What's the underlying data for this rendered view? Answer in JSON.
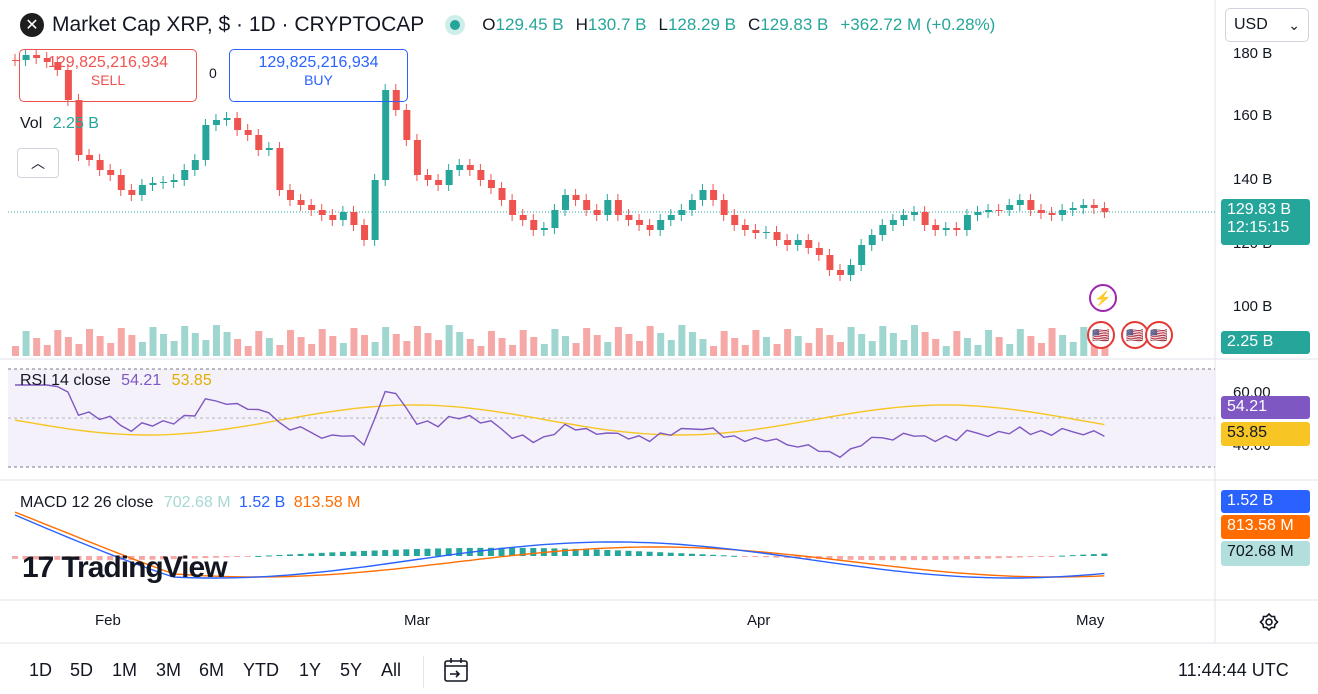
{
  "header": {
    "symbol_icon": "xrp-icon",
    "title": "Market Cap XRP, $ · 1D · CRYPTOCAP",
    "open_label": "O",
    "open": "129.45 B",
    "high_label": "H",
    "high": "130.7 B",
    "low_label": "L",
    "low": "128.29 B",
    "close_label": "C",
    "close": "129.83 B",
    "change": "+362.72 M (+0.28%)"
  },
  "trade": {
    "sell_price": "129,825,216,934",
    "sell_label": "SELL",
    "spread": "0",
    "buy_price": "129,825,216,934",
    "buy_label": "BUY"
  },
  "volume_legend": {
    "label": "Vol",
    "value": "2.25 B"
  },
  "currency": {
    "selected": "USD"
  },
  "price_axis": {
    "labels": [
      "180 B",
      "160 B",
      "140 B",
      "120 B",
      "100 B"
    ]
  },
  "price_tag": {
    "value": "129.83 B",
    "countdown": "12:15:15"
  },
  "volume_tag": "2.25 B",
  "rsi": {
    "title": "RSI 14 close",
    "value": "54.21",
    "ma_value": "53.85",
    "axis_top": "60.00",
    "axis_bottom": "40.00"
  },
  "macd": {
    "title": "MACD 12 26 close",
    "hist": "702.68 M",
    "macd": "1.52 B",
    "signal": "813.58 M"
  },
  "time_axis": [
    "Feb",
    "Mar",
    "Apr",
    "May"
  ],
  "timeframes": [
    "1D",
    "5D",
    "1M",
    "3M",
    "6M",
    "YTD",
    "1Y",
    "5Y",
    "All"
  ],
  "clock": "11:44:44 UTC",
  "logo_text": "TradingView",
  "colors": {
    "up": "#26a69a",
    "down": "#ef5350",
    "rsi": "#7e57c2",
    "rsi_ma": "#f7c624",
    "macd": "#2962ff",
    "signal": "#ff6d00"
  }
}
